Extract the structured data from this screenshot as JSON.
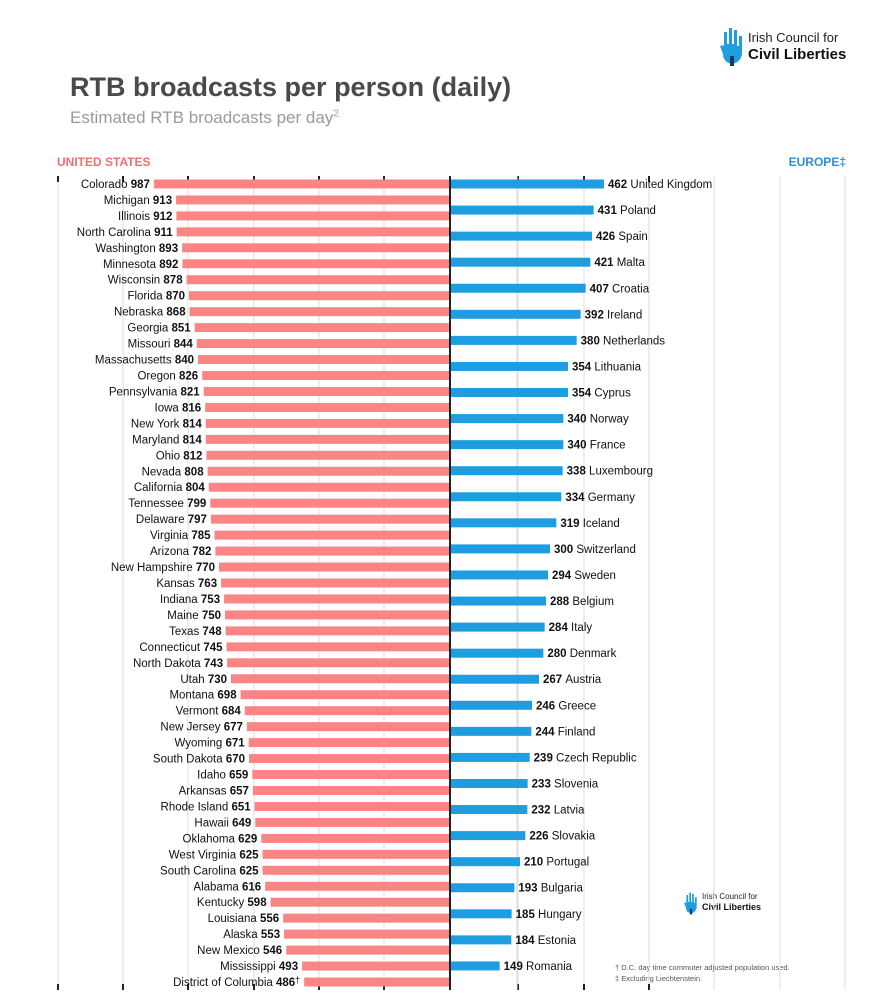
{
  "title": "RTB broadcasts per person (daily)",
  "subtitle": "Estimated RTB broadcasts per day",
  "subtitle_sup": "2",
  "logo": {
    "line1": "Irish Council for",
    "line2": "Civil Liberties"
  },
  "notes": [
    "† D.C. day time commuter adjusted population used.",
    "‡ Excluding Liechtenstein."
  ],
  "colors": {
    "us": "#fb8585",
    "eu": "#1e9ee0",
    "title": "#4a4a4a",
    "us_header": "#f06e6e",
    "eu_header": "#2a8fd4"
  },
  "chart_data": [
    {
      "type": "bar",
      "orientation": "horizontal",
      "direction": "leftward",
      "header": "UNITED STATES",
      "grid": true,
      "categories": [
        "Colorado",
        "Michigan",
        "Illinois",
        "North Carolina",
        "Washington",
        "Minnesota",
        "Wisconsin",
        "Florida",
        "Nebraska",
        "Georgia",
        "Missouri",
        "Massachusetts",
        "Oregon",
        "Pennsylvania",
        "Iowa",
        "New York",
        "Maryland",
        "Ohio",
        "Nevada",
        "California",
        "Tennessee",
        "Delaware",
        "Virginia",
        "Arizona",
        "New Hampshire",
        "Kansas",
        "Indiana",
        "Maine",
        "Texas",
        "Connecticut",
        "North Dakota",
        "Utah",
        "Montana",
        "Vermont",
        "New Jersey",
        "Wyoming",
        "South Dakota",
        "Idaho",
        "Arkansas",
        "Rhode Island",
        "Hawaii",
        "Oklahoma",
        "West Virginia",
        "South Carolina",
        "Alabama",
        "Kentucky",
        "Louisiana",
        "Alaska",
        "New Mexico",
        "Mississippi",
        "District of Columbia"
      ],
      "values": [
        987,
        913,
        912,
        911,
        893,
        892,
        878,
        870,
        868,
        851,
        844,
        840,
        826,
        821,
        816,
        814,
        814,
        812,
        808,
        804,
        799,
        797,
        785,
        782,
        770,
        763,
        753,
        750,
        748,
        745,
        743,
        730,
        698,
        684,
        677,
        671,
        670,
        659,
        657,
        651,
        649,
        629,
        625,
        625,
        616,
        598,
        556,
        553,
        546,
        493,
        486
      ],
      "value_suffixes": {
        "District of Columbia": "†"
      }
    },
    {
      "type": "bar",
      "orientation": "horizontal",
      "direction": "rightward",
      "header": "EUROPE‡",
      "grid": true,
      "categories": [
        "United Kingdom",
        "Poland",
        "Spain",
        "Malta",
        "Croatia",
        "Ireland",
        "Netherlands",
        "Lithuania",
        "Cyprus",
        "Norway",
        "France",
        "Luxembourg",
        "Germany",
        "Iceland",
        "Switzerland",
        "Sweden",
        "Belgium",
        "Italy",
        "Denmark",
        "Austria",
        "Greece",
        "Finland",
        "Czech Republic",
        "Slovenia",
        "Latvia",
        "Slovakia",
        "Portugal",
        "Bulgaria",
        "Hungary",
        "Estonia",
        "Romania"
      ],
      "values": [
        462,
        431,
        426,
        421,
        407,
        392,
        380,
        354,
        354,
        340,
        340,
        338,
        334,
        319,
        300,
        294,
        288,
        284,
        280,
        267,
        246,
        244,
        239,
        233,
        232,
        226,
        210,
        193,
        185,
        184,
        149
      ]
    }
  ]
}
